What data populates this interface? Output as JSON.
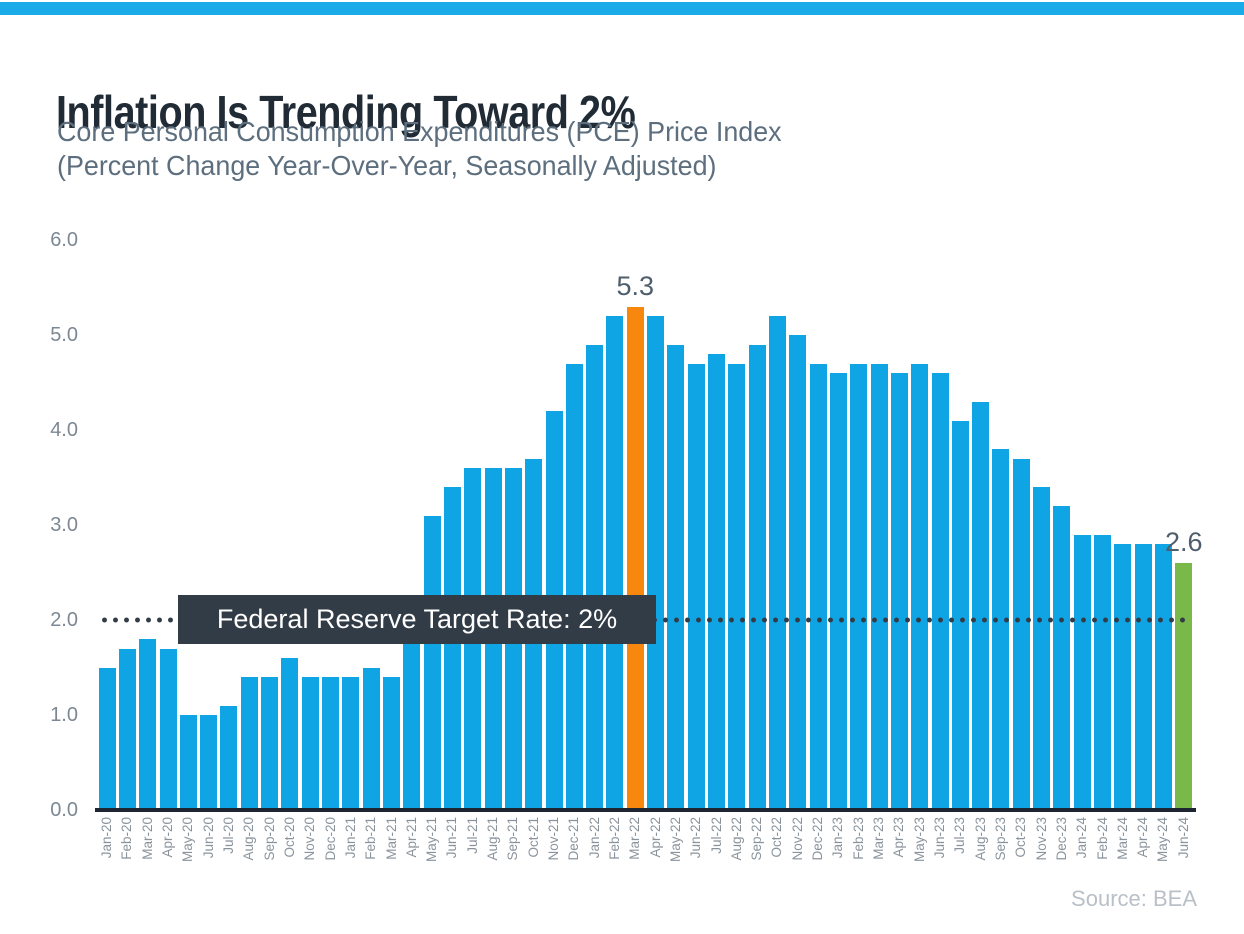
{
  "page": {
    "accent_bar_color": "#1cabe9",
    "background_color": "#ffffff"
  },
  "header": {
    "title": "Inflation Is Trending Toward 2%",
    "subtitle_line1": "Core Personal Consumption Expenditures (PCE) Price Index",
    "subtitle_line2": "(Percent Change Year-Over-Year, Seasonally Adjusted)"
  },
  "chart_data": {
    "type": "bar",
    "title": "Inflation Is Trending Toward 2%",
    "subtitle": "Core Personal Consumption Expenditures (PCE) Price Index (Percent Change Year-Over-Year, Seasonally Adjusted)",
    "categories": [
      "Jan-20",
      "Feb-20",
      "Mar-20",
      "Apr-20",
      "May-20",
      "Jun-20",
      "Jul-20",
      "Aug-20",
      "Sep-20",
      "Oct-20",
      "Nov-20",
      "Dec-20",
      "Jan-21",
      "Feb-21",
      "Mar-21",
      "Apr-21",
      "May-21",
      "Jun-21",
      "Jul-21",
      "Aug-21",
      "Sep-21",
      "Oct-21",
      "Nov-21",
      "Dec-21",
      "Jan-22",
      "Feb-22",
      "Mar-22",
      "Apr-22",
      "May-22",
      "Jun-22",
      "Jul-22",
      "Aug-22",
      "Sep-22",
      "Oct-22",
      "Nov-22",
      "Dec-22",
      "Jan-23",
      "Feb-23",
      "Mar-23",
      "Apr-23",
      "May-23",
      "Jun-23",
      "Jul-23",
      "Aug-23",
      "Sep-23",
      "Oct-23",
      "Nov-23",
      "Dec-23",
      "Jan-24",
      "Feb-24",
      "Mar-24",
      "Apr-24",
      "May-24",
      "Jun-24"
    ],
    "values": [
      1.5,
      1.7,
      1.8,
      1.7,
      1.0,
      1.0,
      1.1,
      1.4,
      1.4,
      1.6,
      1.4,
      1.4,
      1.4,
      1.5,
      1.4,
      2.0,
      3.1,
      3.4,
      3.6,
      3.6,
      3.6,
      3.7,
      4.2,
      4.7,
      4.9,
      5.2,
      5.3,
      5.2,
      4.9,
      4.7,
      4.8,
      4.7,
      4.9,
      5.2,
      5.0,
      4.7,
      4.6,
      4.7,
      4.7,
      4.6,
      4.7,
      4.6,
      4.1,
      4.3,
      3.8,
      3.7,
      3.4,
      3.2,
      2.9,
      2.9,
      2.8,
      2.8,
      2.8,
      2.6
    ],
    "ylim": [
      0.0,
      6.0
    ],
    "y_ticks": [
      "6.0",
      "5.0",
      "4.0",
      "3.0",
      "2.0",
      "1.0",
      "0.0"
    ],
    "grid": false,
    "legend": "none",
    "bar_color": "#0fa5e4",
    "highlight_bars": [
      {
        "index": 26,
        "category": "Mar-22",
        "color": "#f8870e",
        "label": "5.3"
      },
      {
        "index": 53,
        "category": "Jun-24",
        "color": "#79b949",
        "label": "2.6"
      }
    ],
    "reference_line": {
      "value": 2.0,
      "style": "dotted",
      "color": "#333c46",
      "label": "Federal Reserve Target Rate: 2%"
    }
  },
  "footer": {
    "source": "Source: BEA"
  }
}
